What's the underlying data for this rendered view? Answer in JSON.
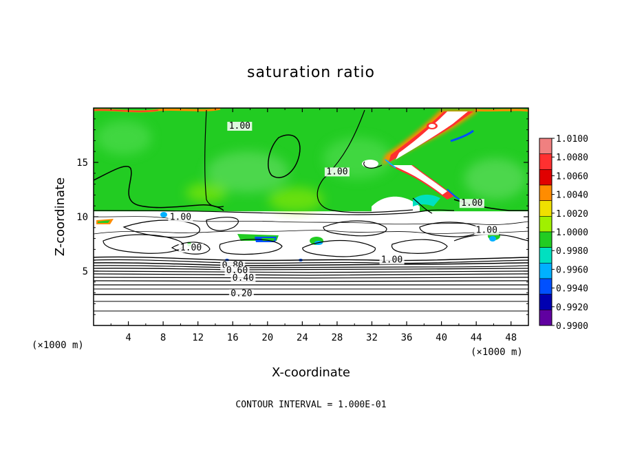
{
  "chart_data": {
    "type": "heatmap",
    "title": "saturation ratio",
    "xlabel": "X-coordinate",
    "ylabel": "Z-coordinate",
    "x_unit": "(×1000 m)",
    "z_unit": "(×1000 m)",
    "xlim": [
      0,
      50
    ],
    "ylim": [
      0,
      20
    ],
    "x_ticks": [
      4,
      8,
      12,
      16,
      20,
      24,
      28,
      32,
      36,
      40,
      44,
      48
    ],
    "y_ticks": [
      5,
      10,
      15
    ],
    "colorbar": {
      "levels": [
        1.01,
        1.008,
        1.006,
        1.004,
        1.002,
        1.0,
        0.998,
        0.996,
        0.994,
        0.992,
        0.99
      ],
      "labels": [
        "1.0100",
        "1.0080",
        "1.0060",
        "1.0040",
        "1.0020",
        "1.0000",
        "0.9980",
        "0.9960",
        "0.9940",
        "0.9920",
        "0.9900"
      ],
      "colors": [
        "#f08080",
        "#ff3030",
        "#e00000",
        "#ff8c00",
        "#f0e000",
        "#a0f000",
        "#22cc22",
        "#00e0c0",
        "#00b0ff",
        "#0050ff",
        "#0000b0",
        "#6000a0"
      ]
    },
    "moist_layer_top_z": 10.5,
    "contour_labels": [
      {
        "text": "1.00",
        "x": 16.8,
        "y": 18.1
      },
      {
        "text": "1.00",
        "x": 28.0,
        "y": 13.9
      },
      {
        "text": "1.00",
        "x": 43.5,
        "y": 11.0
      },
      {
        "text": "1.00",
        "x": 10.0,
        "y": 9.7
      },
      {
        "text": "1.00",
        "x": 45.2,
        "y": 8.5
      },
      {
        "text": "1.00",
        "x": 11.2,
        "y": 6.9
      },
      {
        "text": "1.00",
        "x": 34.3,
        "y": 5.8
      },
      {
        "text": "0.80",
        "x": 16.0,
        "y": 5.3
      },
      {
        "text": "0.60",
        "x": 16.5,
        "y": 4.8
      },
      {
        "text": "0.40",
        "x": 17.2,
        "y": 4.1
      },
      {
        "text": "0.20",
        "x": 17.0,
        "y": 2.7
      }
    ],
    "contour_interval_label": "CONTOUR INTERVAL = 1.000E-01"
  }
}
